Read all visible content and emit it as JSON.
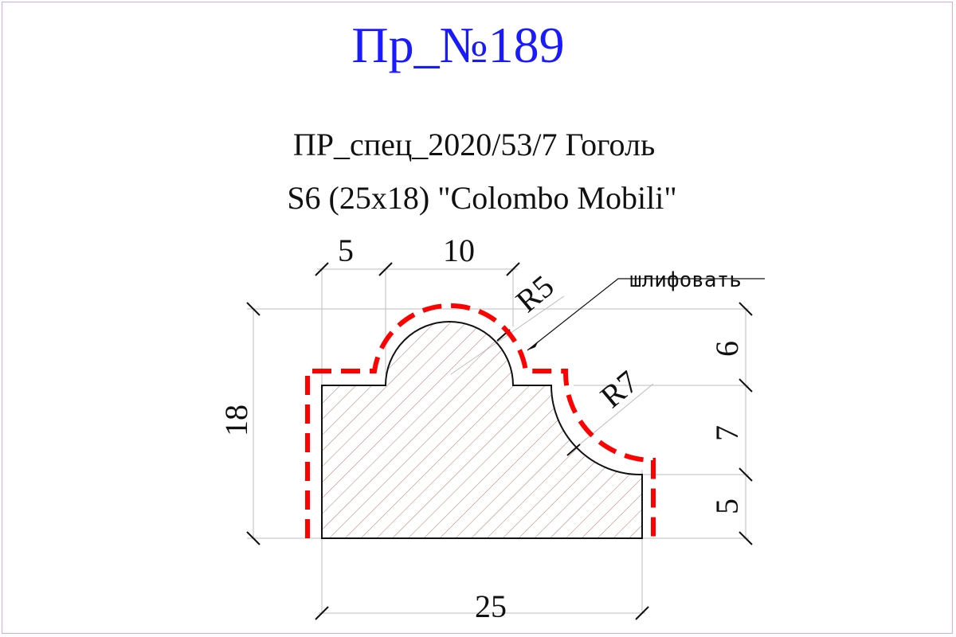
{
  "title": "Пр_№189",
  "subtitle_line1": "ПР_спец_2020/53/7 Гоголь",
  "subtitle_line2": "S6 (25x18) \"Colombo Mobili\"",
  "dimensions": {
    "top_left": "5",
    "top_mid": "10",
    "radius_small": "R5",
    "radius_large": "R7",
    "height_total": "18",
    "right_top": "6",
    "right_mid": "7",
    "right_bottom": "5",
    "width_total": "25"
  },
  "note": "шлифовать",
  "colors": {
    "title": "#1a1aff",
    "sanding_outline": "#ff0000",
    "hatch": "#b07a6a",
    "frame": "#e2a6e2"
  }
}
